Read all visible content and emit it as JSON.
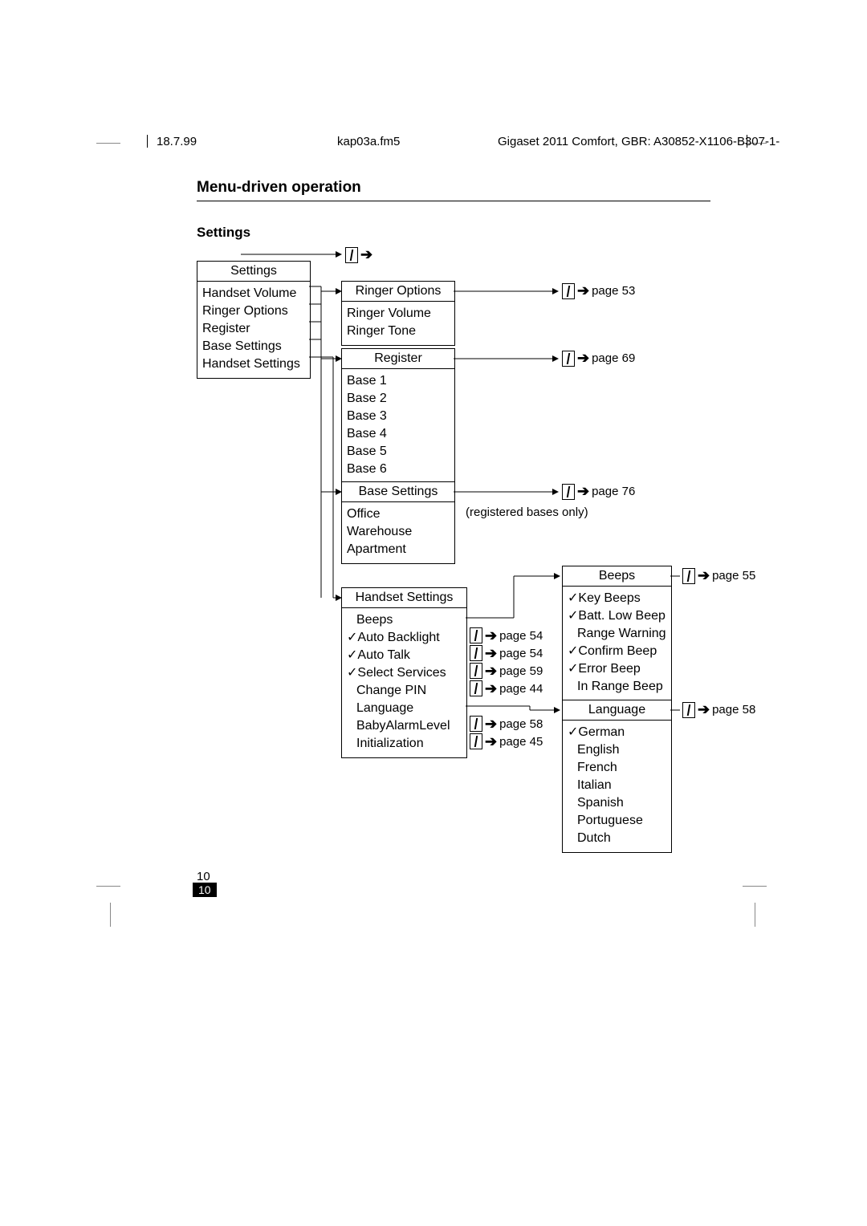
{
  "header": {
    "date": "18.7.99",
    "file": "kap03a.fm5",
    "doc": "Gigaset 2011 Comfort, GBR: A30852-X1106-B307-1-"
  },
  "title": "Menu-driven operation",
  "subsection": "Settings",
  "settings": {
    "header": "Settings",
    "items": [
      "Handset Volume",
      "Ringer Options",
      "Register",
      "Base Settings",
      "Handset Settings"
    ]
  },
  "ringer": {
    "header": "Ringer Options",
    "items": [
      "Ringer Volume",
      "Ringer Tone"
    ],
    "page": "page 53"
  },
  "register": {
    "header": "Register",
    "items": [
      "Base 1",
      "Base 2",
      "Base 3",
      "Base 4",
      "Base 5",
      "Base 6"
    ],
    "page": "page 69"
  },
  "base_settings": {
    "header": "Base Settings",
    "items": [
      "Office",
      "Warehouse",
      "Apartment"
    ],
    "page": "page 76",
    "note": "(registered bases only)"
  },
  "handset_settings": {
    "header": "Handset Settings",
    "items": [
      {
        "label": "Beeps",
        "checked": false,
        "page": null
      },
      {
        "label": "Auto Backlight",
        "checked": true,
        "page": "page 54"
      },
      {
        "label": "Auto Talk",
        "checked": true,
        "page": "page 54"
      },
      {
        "label": "Select Services",
        "checked": true,
        "page": "page 59"
      },
      {
        "label": "Change PIN",
        "checked": false,
        "page": "page 44"
      },
      {
        "label": "Language",
        "checked": false,
        "page": null
      },
      {
        "label": "BabyAlarmLevel",
        "checked": false,
        "page": "page 58"
      },
      {
        "label": "Initialization",
        "checked": false,
        "page": "page 45"
      }
    ]
  },
  "beeps": {
    "header": "Beeps",
    "items": [
      {
        "label": "Key Beeps",
        "checked": true
      },
      {
        "label": "Batt. Low Beep",
        "checked": true
      },
      {
        "label": "Range Warning",
        "checked": false
      },
      {
        "label": "Confirm Beep",
        "checked": true
      },
      {
        "label": "Error Beep",
        "checked": true
      },
      {
        "label": "In Range Beep",
        "checked": false
      }
    ],
    "page": "page 55"
  },
  "language": {
    "header": "Language",
    "items": [
      {
        "label": "German",
        "checked": true
      },
      {
        "label": "English",
        "checked": false
      },
      {
        "label": "French",
        "checked": false
      },
      {
        "label": "Italian",
        "checked": false
      },
      {
        "label": "Spanish",
        "checked": false
      },
      {
        "label": "Portuguese",
        "checked": false
      },
      {
        "label": "Dutch",
        "checked": false
      }
    ],
    "page": "page 58"
  },
  "page_number": "10",
  "arrow": "➔"
}
